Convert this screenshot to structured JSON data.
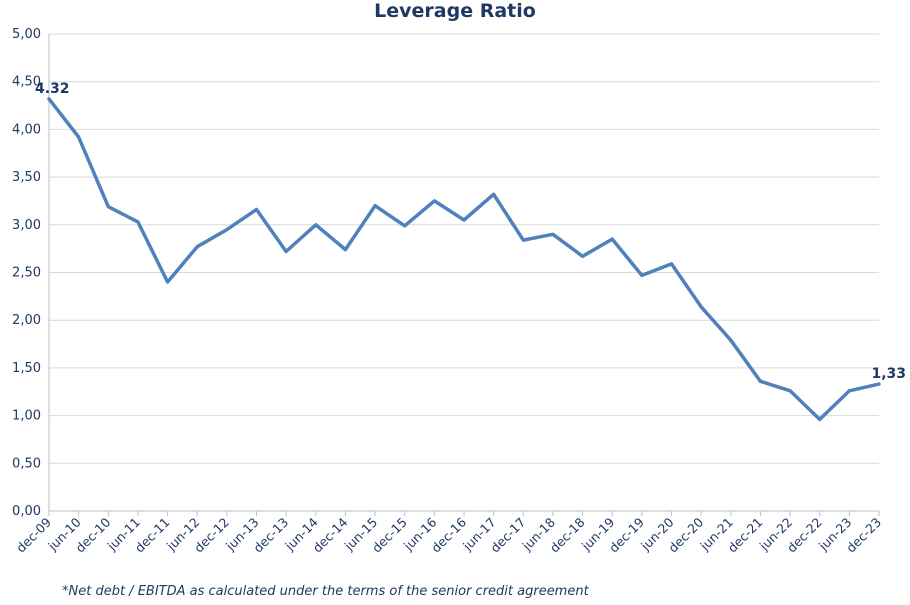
{
  "chart_data": {
    "type": "line",
    "title": "Leverage Ratio",
    "xlabel": "",
    "ylabel": "",
    "ylim": [
      0,
      5
    ],
    "yticks": [
      "0,00",
      "0,50",
      "1,00",
      "1,50",
      "2,00",
      "2,50",
      "3,00",
      "3,50",
      "4,00",
      "4,50",
      "5,00"
    ],
    "categories": [
      "dec-09",
      "jun-10",
      "dec-10",
      "jun-11",
      "dec-11",
      "jun-12",
      "dec-12",
      "jun-13",
      "dec-13",
      "jun-14",
      "dec-14",
      "jun-15",
      "dec-15",
      "jun-16",
      "dec-16",
      "jun-17",
      "dec-17",
      "jun-18",
      "dec-18",
      "jun-19",
      "dec-19",
      "jun-20",
      "dec-20",
      "jun-21",
      "dec-21",
      "jun-22",
      "dec-22",
      "jun-23",
      "dec-23"
    ],
    "series": [
      {
        "values": [
          4.32,
          3.92,
          3.19,
          3.03,
          2.4,
          2.77,
          2.95,
          3.16,
          2.72,
          3.0,
          2.74,
          3.2,
          2.99,
          3.25,
          3.05,
          3.32,
          2.84,
          2.9,
          2.67,
          2.85,
          2.47,
          2.59,
          2.14,
          1.79,
          1.36,
          1.26,
          0.96,
          1.26,
          1.33
        ],
        "color": "#4f81bd"
      }
    ],
    "data_labels": [
      {
        "index": 0,
        "text": "4.32"
      },
      {
        "index": 28,
        "text": "1,33"
      }
    ],
    "grid": true,
    "footnote": "*Net debt / EBITDA as calculated under the terms of the senior credit agreement"
  }
}
